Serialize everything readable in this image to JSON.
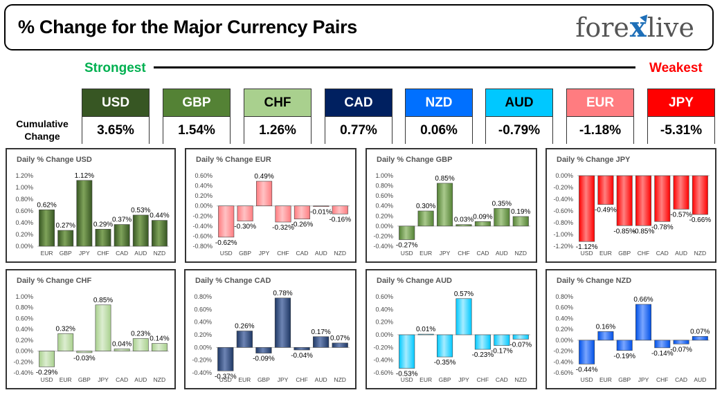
{
  "header": {
    "title": "% Change for the Major Currency Pairs",
    "logo_left": "fore",
    "logo_x": "x",
    "logo_right": "live"
  },
  "scale": {
    "strong_label": "Strongest",
    "weak_label": "Weakest"
  },
  "cumulative": {
    "label_line1": "Cumulative",
    "label_line2": "Change",
    "items": [
      {
        "code": "USD",
        "value": "3.65%",
        "bg": "#375623",
        "fg": "#ffffff"
      },
      {
        "code": "GBP",
        "value": "1.54%",
        "bg": "#548235",
        "fg": "#ffffff"
      },
      {
        "code": "CHF",
        "value": "1.26%",
        "bg": "#a9d08e",
        "fg": "#000000"
      },
      {
        "code": "CAD",
        "value": "0.77%",
        "bg": "#002060",
        "fg": "#ffffff"
      },
      {
        "code": "NZD",
        "value": "0.06%",
        "bg": "#0070ff",
        "fg": "#ffffff"
      },
      {
        "code": "AUD",
        "value": "-0.79%",
        "bg": "#00c8ff",
        "fg": "#000000"
      },
      {
        "code": "EUR",
        "value": "-1.18%",
        "bg": "#ff7c80",
        "fg": "#ffffff"
      },
      {
        "code": "JPY",
        "value": "-5.31%",
        "bg": "#ff0000",
        "fg": "#ffffff"
      }
    ]
  },
  "chart_data": [
    {
      "type": "bar",
      "title": "Daily % Change USD",
      "categories": [
        "EUR",
        "GBP",
        "JPY",
        "CHF",
        "CAD",
        "AUD",
        "NZD"
      ],
      "values": [
        0.62,
        0.27,
        1.12,
        0.29,
        0.37,
        0.53,
        0.44
      ],
      "labels": [
        "0.62%",
        "0.27%",
        "1.12%",
        "0.29%",
        "0.37%",
        "0.53%",
        "0.44%"
      ],
      "yticks": [
        0,
        0.2,
        0.4,
        0.6,
        0.8,
        1.0,
        1.2
      ],
      "ytick_labels": [
        "0.00%",
        "0.20%",
        "0.40%",
        "0.60%",
        "0.80%",
        "1.00%",
        "1.20%"
      ],
      "ylim": [
        0,
        1.2
      ],
      "color": "#375623",
      "color_light": "#7fa35a"
    },
    {
      "type": "bar",
      "title": "Daily % Change EUR",
      "categories": [
        "USD",
        "GBP",
        "JPY",
        "CHF",
        "CAD",
        "AUD",
        "NZD"
      ],
      "values": [
        -0.62,
        -0.3,
        0.49,
        -0.32,
        -0.26,
        -0.01,
        -0.16
      ],
      "labels": [
        "-0.62%",
        "-0.30%",
        "0.49%",
        "-0.32%",
        "-0.26%",
        "-0.01%",
        "-0.16%"
      ],
      "yticks": [
        -0.8,
        -0.6,
        -0.4,
        -0.2,
        0,
        0.2,
        0.4,
        0.6
      ],
      "ytick_labels": [
        "-0.80%",
        "-0.60%",
        "-0.40%",
        "-0.20%",
        "0.00%",
        "0.20%",
        "0.40%",
        "0.60%"
      ],
      "ylim": [
        -0.8,
        0.6
      ],
      "color": "#ff7c80",
      "color_light": "#ffc2c4"
    },
    {
      "type": "bar",
      "title": "Daily % Change GBP",
      "categories": [
        "USD",
        "EUR",
        "JPY",
        "CHF",
        "CAD",
        "AUD",
        "NZD"
      ],
      "values": [
        -0.27,
        0.3,
        0.85,
        0.03,
        0.09,
        0.35,
        0.19
      ],
      "labels": [
        "-0.27%",
        "0.30%",
        "0.85%",
        "0.03%",
        "0.09%",
        "0.35%",
        "0.19%"
      ],
      "yticks": [
        -0.4,
        -0.2,
        0,
        0.2,
        0.4,
        0.6,
        0.8,
        1.0
      ],
      "ytick_labels": [
        "-0.40%",
        "-0.20%",
        "0.00%",
        "0.20%",
        "0.40%",
        "0.60%",
        "0.80%",
        "1.00%"
      ],
      "ylim": [
        -0.4,
        1.0
      ],
      "color": "#548235",
      "color_light": "#a9c98c"
    },
    {
      "type": "bar",
      "title": "Daily % Change JPY",
      "categories": [
        "USD",
        "EUR",
        "GBP",
        "CHF",
        "CAD",
        "AUD",
        "NZD"
      ],
      "values": [
        -1.12,
        -0.49,
        -0.85,
        -0.85,
        -0.78,
        -0.57,
        -0.66
      ],
      "labels": [
        "-1.12%",
        "-0.49%",
        "-0.85%",
        "-0.85%",
        "-0.78%",
        "-0.57%",
        "-0.66%"
      ],
      "yticks": [
        -1.2,
        -1.0,
        -0.8,
        -0.6,
        -0.4,
        -0.2,
        0
      ],
      "ytick_labels": [
        "-1.20%",
        "-1.00%",
        "-0.80%",
        "-0.60%",
        "-0.40%",
        "-0.20%",
        "0.00%"
      ],
      "ylim": [
        -1.2,
        0
      ],
      "color": "#ff0000",
      "color_light": "#ff8080"
    },
    {
      "type": "bar",
      "title": "Daily % Change CHF",
      "categories": [
        "USD",
        "EUR",
        "GBP",
        "JPY",
        "CAD",
        "AUD",
        "NZD"
      ],
      "values": [
        -0.29,
        0.32,
        -0.03,
        0.85,
        0.04,
        0.23,
        0.14
      ],
      "labels": [
        "-0.29%",
        "0.32%",
        "-0.03%",
        "0.85%",
        "0.04%",
        "0.23%",
        "0.14%"
      ],
      "yticks": [
        -0.4,
        -0.2,
        0,
        0.2,
        0.4,
        0.6,
        0.8,
        1.0
      ],
      "ytick_labels": [
        "-0.40%",
        "-0.20%",
        "0.00%",
        "0.20%",
        "0.40%",
        "0.60%",
        "0.80%",
        "1.00%"
      ],
      "ylim": [
        -0.4,
        1.0
      ],
      "color": "#a9d08e",
      "color_light": "#dcedd0"
    },
    {
      "type": "bar",
      "title": "Daily % Change CAD",
      "categories": [
        "USD",
        "EUR",
        "GBP",
        "JPY",
        "CHF",
        "AUD",
        "NZD"
      ],
      "values": [
        -0.37,
        0.26,
        -0.09,
        0.78,
        -0.04,
        0.17,
        0.07
      ],
      "labels": [
        "-0.37%",
        "0.26%",
        "-0.09%",
        "0.78%",
        "-0.04%",
        "0.17%",
        "0.07%"
      ],
      "yticks": [
        -0.4,
        -0.2,
        0,
        0.2,
        0.4,
        0.6,
        0.8
      ],
      "ytick_labels": [
        "-0.40%",
        "-0.20%",
        "0.00%",
        "0.20%",
        "0.40%",
        "0.60%",
        "0.80%"
      ],
      "ylim": [
        -0.4,
        0.8
      ],
      "color": "#1f3864",
      "color_light": "#6d84b4"
    },
    {
      "type": "bar",
      "title": "Daily % Change AUD",
      "categories": [
        "USD",
        "EUR",
        "GBP",
        "JPY",
        "CHF",
        "CAD",
        "NZD"
      ],
      "values": [
        -0.53,
        0.01,
        -0.35,
        0.57,
        -0.23,
        -0.17,
        -0.07
      ],
      "labels": [
        "-0.53%",
        "0.01%",
        "-0.35%",
        "0.57%",
        "-0.23%",
        "-0.17%",
        "-0.07%"
      ],
      "yticks": [
        -0.6,
        -0.4,
        -0.2,
        0,
        0.2,
        0.4,
        0.6
      ],
      "ytick_labels": [
        "-0.60%",
        "-0.40%",
        "-0.20%",
        "0.00%",
        "0.20%",
        "0.40%",
        "0.60%"
      ],
      "ylim": [
        -0.6,
        0.6
      ],
      "color": "#00c8ff",
      "color_light": "#a6ecff"
    },
    {
      "type": "bar",
      "title": "Daily % Change NZD",
      "categories": [
        "USD",
        "EUR",
        "GBP",
        "JPY",
        "CHF",
        "CAD",
        "AUD"
      ],
      "values": [
        -0.44,
        0.16,
        -0.19,
        0.66,
        -0.14,
        -0.07,
        0.07
      ],
      "labels": [
        "-0.44%",
        "0.16%",
        "-0.19%",
        "0.66%",
        "-0.14%",
        "-0.07%",
        "0.07%"
      ],
      "yticks": [
        -0.6,
        -0.4,
        -0.2,
        0,
        0.2,
        0.4,
        0.6,
        0.8
      ],
      "ytick_labels": [
        "-0.60%",
        "-0.40%",
        "-0.20%",
        "0.00%",
        "0.20%",
        "0.40%",
        "0.60%",
        "0.80%"
      ],
      "ylim": [
        -0.6,
        0.8
      ],
      "color": "#0050e6",
      "color_light": "#7aa6ff"
    }
  ]
}
